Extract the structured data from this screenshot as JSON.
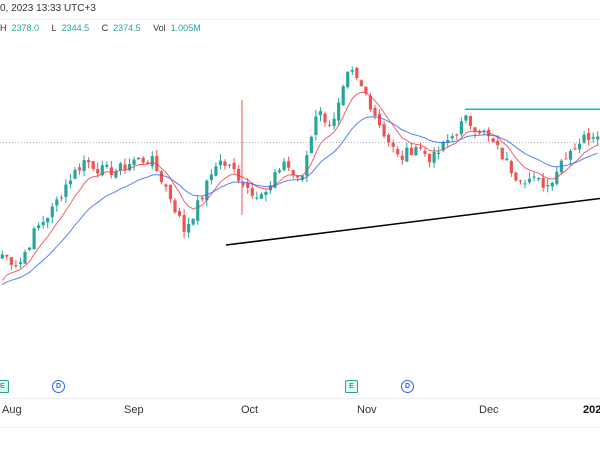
{
  "header": {
    "datetime": "0, 2023 13:33 UTC+3",
    "ohlc": {
      "h_label": "H",
      "h": "2378.0",
      "l_label": "L",
      "l": "2344.5",
      "c_label": "C",
      "c": "2374.5",
      "vol_label": "Vol",
      "vol": "1.005M"
    }
  },
  "events": [
    {
      "type": "earnings",
      "label": "E"
    },
    {
      "type": "dividend",
      "label": "D"
    },
    {
      "type": "earnings",
      "label": "E"
    },
    {
      "type": "dividend",
      "label": "D"
    }
  ],
  "chart_data": {
    "type": "candlestick",
    "x_ticks": [
      "Aug",
      "Sep",
      "Oct",
      "Nov",
      "Dec",
      "202"
    ],
    "ylim": [
      2250,
      2470
    ],
    "anchor_closes": [
      2279,
      2271,
      2297,
      2312,
      2335,
      2350,
      2342,
      2342,
      2350,
      2350,
      2327,
      2297,
      2320,
      2350,
      2342,
      2327,
      2324,
      2350,
      2331,
      2387,
      2376,
      2417,
      2399,
      2372,
      2350,
      2361,
      2350,
      2365,
      2380,
      2372,
      2357,
      2339,
      2335,
      2331,
      2354,
      2365,
      2372
    ],
    "resistance_level": 2388,
    "reference_level": 2363,
    "support_trendline": {
      "start": 2286,
      "end": 2321
    },
    "moving_averages": [
      {
        "name": "fast",
        "color": "#f23645"
      },
      {
        "name": "slow",
        "color": "#2962ff"
      }
    ],
    "colors": {
      "up": "#26a69a",
      "down": "#ef5350",
      "resistance": "#00bcd4",
      "support": "#000000"
    }
  }
}
